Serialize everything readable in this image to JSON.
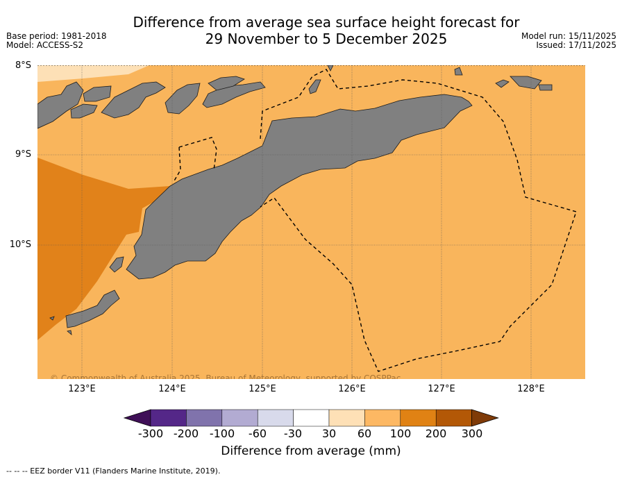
{
  "header": {
    "title_line1": "Difference from average sea surface height forecast for",
    "title_line2": "29 November to 5 December 2025",
    "base_period": "Base period: 1981-2018",
    "model": "Model: ACCESS-S2",
    "model_run": "Model run: 15/11/2025",
    "issued": "Issued: 17/11/2025"
  },
  "map": {
    "lat_labels": [
      "8°S",
      "9°S",
      "10°S"
    ],
    "lon_labels": [
      "123°E",
      "124°E",
      "125°E",
      "126°E",
      "127°E",
      "128°E"
    ],
    "copyright": "© Commonwealth of Australia 2025, Bureau of Meteorology, supported by COSPPac",
    "colors": {
      "land": "#808080",
      "sea_60_100": "#f9b55c",
      "sea_100_200": "#e1821a",
      "sea_30_60": "#fde0b6"
    }
  },
  "colorbar": {
    "ticks": [
      "-300",
      "-200",
      "-100",
      "-60",
      "-30",
      "30",
      "60",
      "100",
      "200",
      "300"
    ],
    "colors": [
      "#3f0f57",
      "#542788",
      "#8073ac",
      "#b2abd2",
      "#d8daeb",
      "#ffffff",
      "#fee0b6",
      "#fdb863",
      "#e08214",
      "#b35806",
      "#7f3b08"
    ],
    "label": "Difference from average (mm)"
  },
  "footer": {
    "eez_note": "--  --  -- EEZ border V11 (Flanders Marine Institute, 2019)."
  }
}
